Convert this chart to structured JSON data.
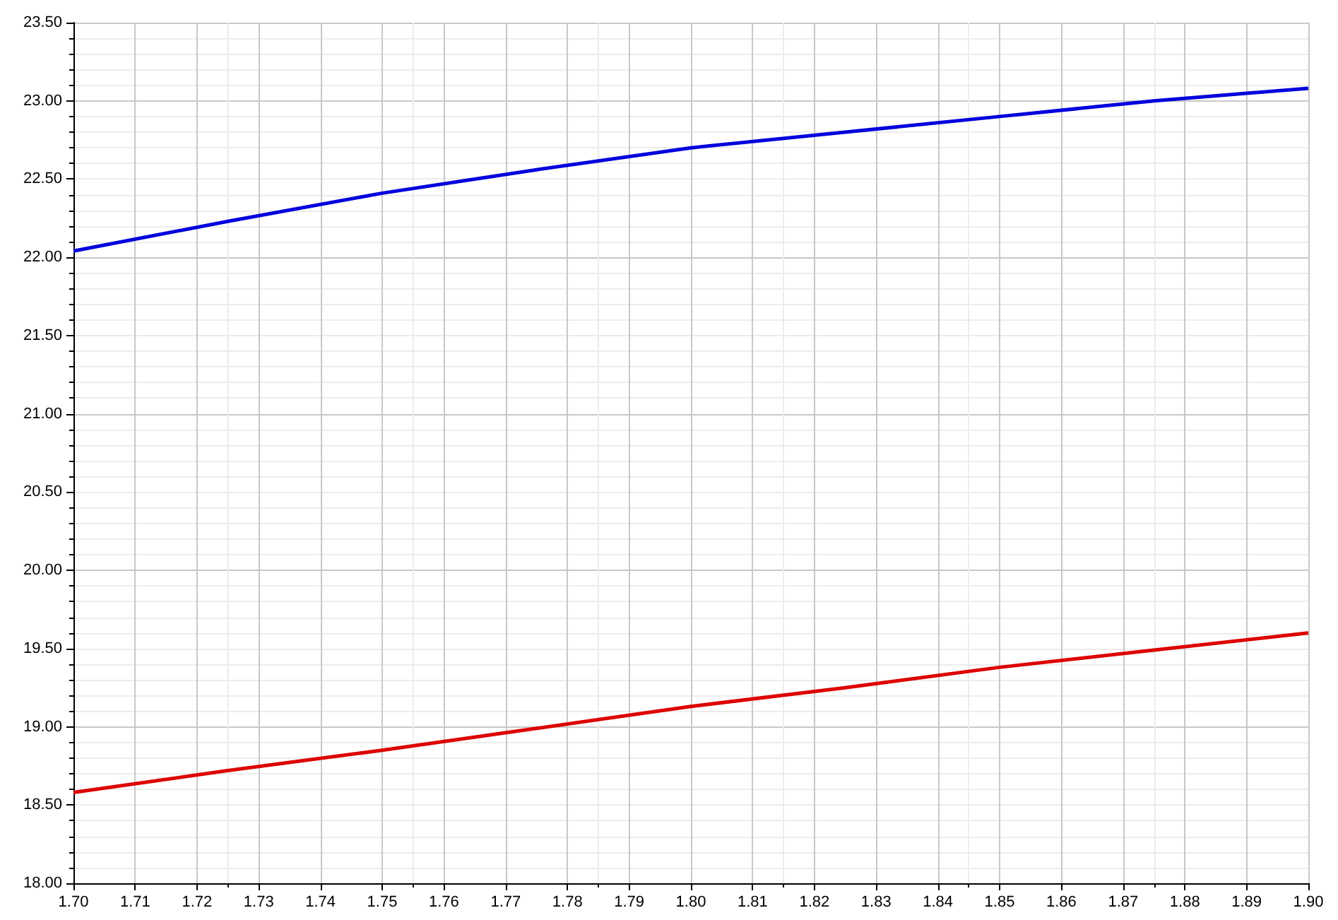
{
  "chart_data": {
    "type": "line",
    "x": [
      1.7,
      1.725,
      1.75,
      1.775,
      1.8,
      1.825,
      1.85,
      1.875,
      1.9
    ],
    "series": [
      {
        "color": "#0000dd",
        "values": [
          22.04,
          22.23,
          22.41,
          22.56,
          22.7,
          22.8,
          22.9,
          23.0,
          23.08
        ]
      },
      {
        "color": "#dd0000",
        "values": [
          18.58,
          18.72,
          18.85,
          18.99,
          19.13,
          19.25,
          19.38,
          19.49,
          19.6
        ]
      }
    ],
    "xlim": [
      1.7,
      1.9
    ],
    "xticks": [
      {
        "value": 1.7,
        "label": "1.70"
      },
      {
        "value": 1.71,
        "label": "1.71"
      },
      {
        "value": 1.72,
        "label": "1.72"
      },
      {
        "value": 1.73,
        "label": "1.73"
      },
      {
        "value": 1.74,
        "label": "1.74"
      },
      {
        "value": 1.75,
        "label": "1.75"
      },
      {
        "value": 1.76,
        "label": "1.76"
      },
      {
        "value": 1.77,
        "label": "1.77"
      },
      {
        "value": 1.78,
        "label": "1.78"
      },
      {
        "value": 1.79,
        "label": "1.79"
      },
      {
        "value": 1.8,
        "label": "1.80"
      },
      {
        "value": 1.81,
        "label": "1.81"
      },
      {
        "value": 1.82,
        "label": "1.82"
      },
      {
        "value": 1.83,
        "label": "1.83"
      },
      {
        "value": 1.84,
        "label": "1.84"
      },
      {
        "value": 1.85,
        "label": "1.85"
      },
      {
        "value": 1.86,
        "label": "1.86"
      },
      {
        "value": 1.87,
        "label": "1.87"
      },
      {
        "value": 1.88,
        "label": "1.88"
      },
      {
        "value": 1.89,
        "label": "1.89"
      },
      {
        "value": 1.9,
        "label": "1.90"
      }
    ],
    "ylim": [
      18.0,
      23.5
    ],
    "yticks": [
      {
        "value": 18,
        "label": "18.00"
      },
      {
        "value": 18.5,
        "label": "18.50"
      },
      {
        "value": 19,
        "label": "19.00"
      },
      {
        "value": 19.5,
        "label": "19.50"
      },
      {
        "value": 20,
        "label": "20.00"
      },
      {
        "value": 20.5,
        "label": "20.50"
      },
      {
        "value": 21,
        "label": "21.00"
      },
      {
        "value": 21.5,
        "label": "21.50"
      },
      {
        "value": 22,
        "label": "22.00"
      },
      {
        "value": 22.5,
        "label": "22.50"
      },
      {
        "value": 23,
        "label": "23.00"
      },
      {
        "value": 23.5,
        "label": "23.50"
      }
    ],
    "grid": true,
    "marker": "none",
    "line_style": "solid"
  }
}
